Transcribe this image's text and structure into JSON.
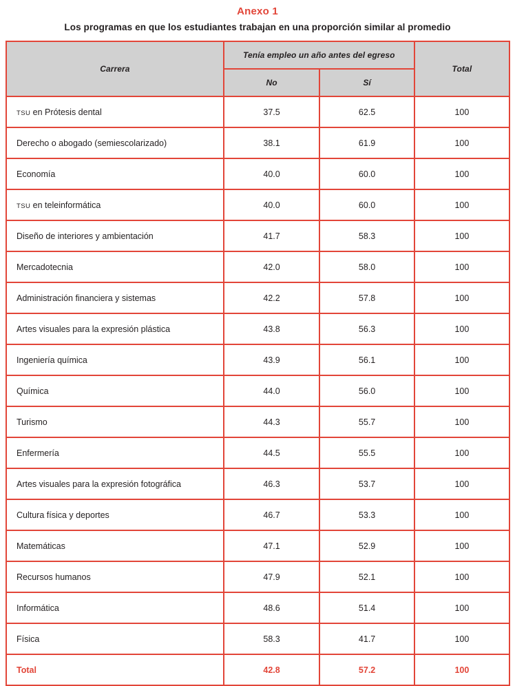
{
  "page": {
    "title": "Anexo 1",
    "subtitle": "Los programas en que los estudiantes trabajan en una proporción similar al promedio"
  },
  "colors": {
    "accent_red": "#e24538",
    "header_bg": "#d1d1d1",
    "body_text": "#231f20"
  },
  "table": {
    "col_carrera": "Carrera",
    "col_group": "Tenía empleo un año antes del egreso",
    "col_no": "No",
    "col_si": "Sí",
    "col_total": "Total",
    "rows": [
      {
        "carrera": "TSU en Prótesis dental",
        "no": "37.5",
        "si": "62.5",
        "total": "100"
      },
      {
        "carrera": "Derecho o abogado (semiescolarizado)",
        "no": "38.1",
        "si": "61.9",
        "total": "100"
      },
      {
        "carrera": "Economía",
        "no": "40.0",
        "si": "60.0",
        "total": "100"
      },
      {
        "carrera": "TSU en teleinformática",
        "no": "40.0",
        "si": "60.0",
        "total": "100"
      },
      {
        "carrera": "Diseño de interiores y ambientación",
        "no": "41.7",
        "si": "58.3",
        "total": "100"
      },
      {
        "carrera": "Mercadotecnia",
        "no": "42.0",
        "si": "58.0",
        "total": "100"
      },
      {
        "carrera": "Administración financiera y sistemas",
        "no": "42.2",
        "si": "57.8",
        "total": "100"
      },
      {
        "carrera": "Artes visuales para la expresión plástica",
        "no": "43.8",
        "si": "56.3",
        "total": "100"
      },
      {
        "carrera": "Ingeniería química",
        "no": "43.9",
        "si": "56.1",
        "total": "100"
      },
      {
        "carrera": "Química",
        "no": "44.0",
        "si": "56.0",
        "total": "100"
      },
      {
        "carrera": "Turismo",
        "no": "44.3",
        "si": "55.7",
        "total": "100"
      },
      {
        "carrera": "Enfermería",
        "no": "44.5",
        "si": "55.5",
        "total": "100"
      },
      {
        "carrera": "Artes visuales para la expresión fotográfica",
        "no": "46.3",
        "si": "53.7",
        "total": "100"
      },
      {
        "carrera": "Cultura física y deportes",
        "no": "46.7",
        "si": "53.3",
        "total": "100"
      },
      {
        "carrera": "Matemáticas",
        "no": "47.1",
        "si": "52.9",
        "total": "100"
      },
      {
        "carrera": "Recursos humanos",
        "no": "47.9",
        "si": "52.1",
        "total": "100"
      },
      {
        "carrera": "Informática",
        "no": "48.6",
        "si": "51.4",
        "total": "100"
      },
      {
        "carrera": "Física",
        "no": "58.3",
        "si": "41.7",
        "total": "100"
      }
    ],
    "total_row": {
      "carrera": "Total",
      "no": "42.8",
      "si": "57.2",
      "total": "100"
    }
  }
}
